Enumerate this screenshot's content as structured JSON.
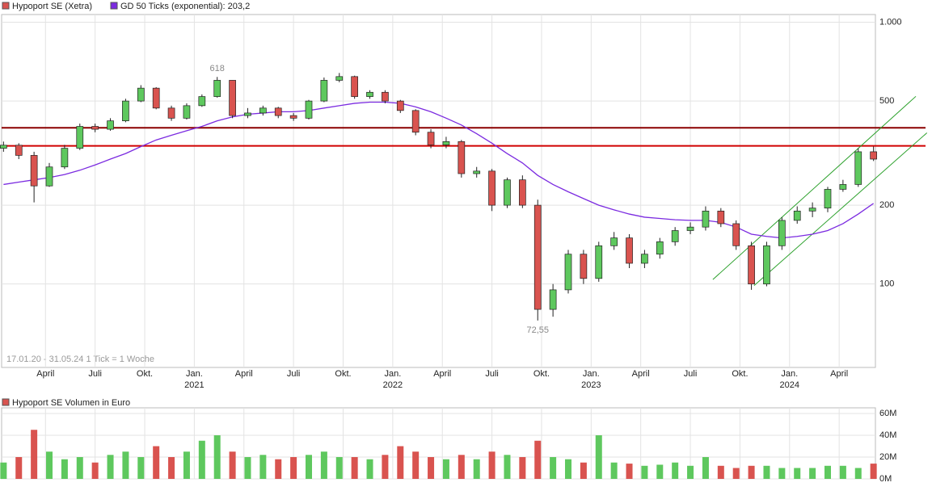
{
  "chart_data": [
    {
      "type": "candlestick",
      "name": "Hypoport SE (Xetra)",
      "color": "#d9534f",
      "color_up": "#5ec85e",
      "color_down": "#d9534f",
      "x": [
        0,
        4,
        8,
        12,
        16,
        20,
        24,
        28,
        32,
        36,
        40,
        44,
        48,
        52,
        56,
        60,
        64,
        68,
        72,
        76,
        80,
        84,
        88,
        92,
        96,
        100,
        104,
        108,
        112,
        116,
        120,
        124,
        128,
        132,
        136,
        140,
        144,
        148,
        152,
        156,
        160,
        164,
        168,
        172,
        176,
        180,
        184,
        188,
        192,
        196,
        200,
        204,
        208,
        212,
        216,
        220,
        224,
        228
      ],
      "open": [
        330,
        339,
        310,
        237,
        280,
        330,
        400,
        390,
        420,
        500,
        560,
        470,
        430,
        480,
        520,
        600,
        440,
        450,
        470,
        440,
        430,
        500,
        600,
        620,
        520,
        540,
        500,
        460,
        380,
        340,
        350,
        264,
        270,
        200,
        250,
        200,
        80,
        95,
        130,
        105,
        140,
        150,
        120,
        130,
        145,
        160,
        165,
        190,
        170,
        140,
        100,
        140,
        175,
        190,
        195,
        230,
        240,
        320
      ],
      "high": [
        350,
        345,
        320,
        290,
        340,
        410,
        410,
        430,
        510,
        575,
        565,
        480,
        490,
        530,
        618,
        600,
        470,
        480,
        475,
        450,
        505,
        615,
        640,
        625,
        550,
        550,
        505,
        465,
        390,
        365,
        355,
        280,
        275,
        255,
        260,
        210,
        100,
        135,
        135,
        145,
        158,
        155,
        135,
        150,
        165,
        172,
        198,
        195,
        175,
        145,
        145,
        180,
        198,
        205,
        235,
        250,
        330,
        335
      ],
      "low": [
        320,
        300,
        205,
        235,
        275,
        325,
        380,
        385,
        415,
        495,
        465,
        420,
        425,
        475,
        515,
        430,
        430,
        440,
        430,
        420,
        425,
        495,
        590,
        510,
        510,
        490,
        450,
        370,
        330,
        330,
        255,
        255,
        190,
        195,
        195,
        72.55,
        75,
        92,
        100,
        102,
        135,
        115,
        115,
        125,
        140,
        155,
        160,
        165,
        135,
        95,
        98,
        135,
        170,
        180,
        188,
        225,
        235,
        295
      ],
      "close": [
        339,
        310,
        237,
        280,
        330,
        400,
        390,
        420,
        500,
        560,
        470,
        430,
        480,
        520,
        600,
        440,
        450,
        470,
        440,
        430,
        500,
        600,
        620,
        520,
        540,
        500,
        460,
        380,
        340,
        350,
        264,
        270,
        200,
        250,
        200,
        80,
        95,
        130,
        105,
        140,
        150,
        120,
        130,
        145,
        160,
        165,
        190,
        170,
        140,
        100,
        140,
        175,
        190,
        195,
        230,
        240,
        320,
        300
      ],
      "ma": {
        "name": "GD 50 Ticks (exponential): 203,2",
        "color": "#7b2be0",
        "values": [
          240,
          245,
          250,
          255,
          262,
          272,
          285,
          300,
          315,
          335,
          355,
          370,
          385,
          400,
          420,
          435,
          445,
          450,
          455,
          455,
          460,
          470,
          480,
          490,
          495,
          495,
          490,
          475,
          455,
          430,
          405,
          375,
          345,
          315,
          290,
          260,
          240,
          225,
          212,
          200,
          192,
          185,
          180,
          178,
          176,
          175,
          175,
          172,
          165,
          155,
          152,
          150,
          152,
          155,
          160,
          170,
          185,
          203.2
        ]
      },
      "hlines": [
        {
          "value": 395,
          "color": "#8b0000"
        },
        {
          "value": 337,
          "color": "#d00000"
        }
      ],
      "channel": [
        {
          "x": [
            185.9,
            239.1
          ],
          "y": [
            104,
            521
          ],
          "color": "#2aa02a"
        },
        {
          "x": [
            196.7,
            242
          ],
          "y": [
            98.6,
            378
          ],
          "color": "#2aa02a"
        }
      ],
      "annotations": [
        {
          "x": 56,
          "value": 618
        },
        {
          "x": 140,
          "value": 72.55,
          "label": "72,55"
        }
      ],
      "xlim": [
        -0.5,
        228.5
      ],
      "ylim": [
        48,
        1070
      ],
      "log": true,
      "grid": true,
      "yticks": [
        {
          "value": 1000,
          "label": "1.000"
        },
        500,
        200,
        100
      ],
      "xticks": [
        {
          "value": 11,
          "label": "April"
        },
        {
          "value": 24,
          "label": "Juli"
        },
        {
          "value": 37,
          "label": "Okt."
        },
        {
          "value": 50,
          "label": "Jan."
        },
        {
          "value": 63,
          "label": "April"
        },
        {
          "value": 76,
          "label": "Juli"
        },
        {
          "value": 89,
          "label": "Okt."
        },
        {
          "value": 102,
          "label": "Jan."
        },
        {
          "value": 115,
          "label": "April"
        },
        {
          "value": 128,
          "label": "Juli"
        },
        {
          "value": 141,
          "label": "Okt."
        },
        {
          "value": 154,
          "label": "Jan."
        },
        {
          "value": 167,
          "label": "April"
        },
        {
          "value": 180,
          "label": "Juli"
        },
        {
          "value": 193,
          "label": "Okt."
        },
        {
          "value": 206,
          "label": "Jan."
        },
        {
          "value": 219,
          "label": "April"
        }
      ],
      "xticks_year": [
        {
          "value": 50,
          "label": "2021"
        },
        {
          "value": 102,
          "label": "2022"
        },
        {
          "value": 154,
          "label": "2023"
        },
        {
          "value": 206,
          "label": "2024"
        }
      ],
      "footer": "17.01.20 - 31.05.24    1 Tick = 1 Woche"
    },
    {
      "type": "bar",
      "title": "Hypoport SE Volumen in Euro",
      "color": "#d9534f",
      "values": [
        15000000,
        20000000,
        45000000,
        25000000,
        18000000,
        20000000,
        15000000,
        22000000,
        25000000,
        20000000,
        30000000,
        20000000,
        25000000,
        35000000,
        40000000,
        25000000,
        20000000,
        22000000,
        18000000,
        20000000,
        22000000,
        25000000,
        20000000,
        20000000,
        18000000,
        22000000,
        30000000,
        25000000,
        20000000,
        18000000,
        22000000,
        18000000,
        25000000,
        22000000,
        20000000,
        35000000,
        20000000,
        18000000,
        15000000,
        40000000,
        15000000,
        14000000,
        12000000,
        13000000,
        15000000,
        12000000,
        20000000,
        12000000,
        10000000,
        12000000,
        12000000,
        10000000,
        10000000,
        10000000,
        12000000,
        12000000,
        10000000,
        14000000
      ],
      "ylim": [
        0,
        60000000
      ],
      "yticks": [
        {
          "value": 0,
          "label": "0M"
        },
        {
          "value": 20000000,
          "label": "20M"
        },
        {
          "value": 40000000,
          "label": "40M"
        },
        {
          "value": 60000000,
          "label": "60M"
        }
      ]
    }
  ]
}
